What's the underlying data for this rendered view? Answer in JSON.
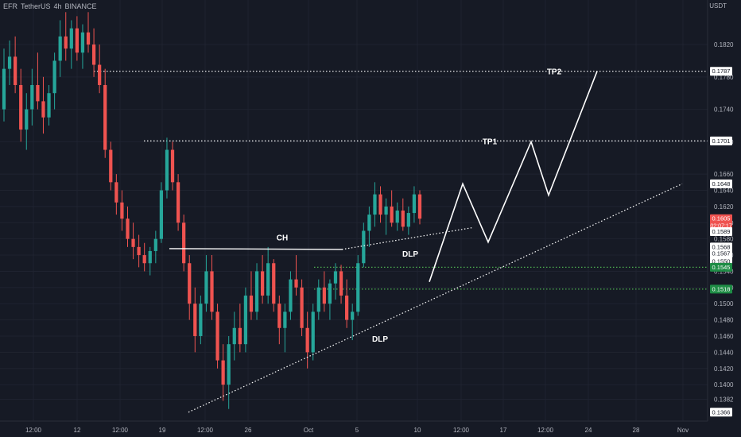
{
  "header": {
    "symbol": "EFR",
    "pair_text": "TetherUS",
    "interval": "4h",
    "exchange": "BINANCE",
    "currency": "USDT"
  },
  "colors": {
    "background": "#161a25",
    "grid": "#1f2330",
    "up": "#26a69a",
    "down": "#ef5350",
    "text": "#b2b5be",
    "annotation": "#ffffff",
    "support_line": "#4caf50",
    "green_tag": "#1e8c45",
    "current_tag": "#ef5350"
  },
  "chart_data": {
    "type": "candlestick",
    "y_axis": {
      "unit": "USDT",
      "range": [
        0.1355,
        0.1875
      ],
      "ticks": [
        0.182,
        0.178,
        0.174,
        0.17,
        0.166,
        0.164,
        0.162,
        0.16,
        0.158,
        0.156,
        0.154,
        0.152,
        0.15,
        0.148,
        0.146,
        0.144,
        0.142,
        0.14,
        0.1382
      ]
    },
    "x_axis": {
      "ticks": [
        "12:00",
        "12",
        "12:00",
        "19",
        "12:00",
        "26",
        "Oct",
        "5",
        "10",
        "12:00",
        "17",
        "12:00",
        "24",
        "28",
        "Nov"
      ]
    },
    "price_tags": [
      {
        "label": "0.1787",
        "style": "outline"
      },
      {
        "label": "0.1701",
        "style": "outline"
      },
      {
        "label": "0.1648",
        "style": "outline"
      },
      {
        "label": "0.1605",
        "sublabel": "02:07:17",
        "style": "current"
      },
      {
        "label": "0.1589",
        "style": "outline"
      },
      {
        "label": "0.1568",
        "style": "outline"
      },
      {
        "label": "0.1567",
        "style": "outline"
      },
      {
        "label": "0.1550",
        "style": "outline"
      },
      {
        "label": "0.1545",
        "style": "green"
      },
      {
        "label": "0.1518",
        "style": "green"
      },
      {
        "label": "0.1366",
        "style": "outline"
      }
    ],
    "levels": [
      {
        "name": "TP2",
        "price": 0.1787,
        "style": "dotted-white"
      },
      {
        "name": "TP1",
        "price": 0.1701,
        "style": "dotted-white"
      },
      {
        "price": 0.1545,
        "style": "dotted-green"
      },
      {
        "price": 0.1518,
        "style": "dotted-green"
      }
    ],
    "annotations": [
      "TP2",
      "TP1",
      "CH",
      "DLP",
      "DLP"
    ],
    "candles_approx": [
      [
        0.174,
        0.1815,
        0.1725,
        0.179
      ],
      [
        0.179,
        0.1825,
        0.177,
        0.1805
      ],
      [
        0.1805,
        0.183,
        0.176,
        0.177
      ],
      [
        0.177,
        0.179,
        0.17,
        0.1715
      ],
      [
        0.1715,
        0.176,
        0.169,
        0.174
      ],
      [
        0.174,
        0.179,
        0.172,
        0.177
      ],
      [
        0.177,
        0.181,
        0.174,
        0.175
      ],
      [
        0.175,
        0.178,
        0.171,
        0.173
      ],
      [
        0.173,
        0.177,
        0.172,
        0.176
      ],
      [
        0.176,
        0.181,
        0.174,
        0.18
      ],
      [
        0.18,
        0.185,
        0.178,
        0.183
      ],
      [
        0.183,
        0.186,
        0.18,
        0.1815
      ],
      [
        0.1815,
        0.185,
        0.179,
        0.184
      ],
      [
        0.184,
        0.1855,
        0.18,
        0.181
      ],
      [
        0.181,
        0.1845,
        0.179,
        0.1835
      ],
      [
        0.1835,
        0.186,
        0.181,
        0.182
      ],
      [
        0.182,
        0.184,
        0.178,
        0.1795
      ],
      [
        0.1795,
        0.182,
        0.176,
        0.177
      ],
      [
        0.177,
        0.179,
        0.168,
        0.169
      ],
      [
        0.169,
        0.17,
        0.164,
        0.165
      ],
      [
        0.165,
        0.166,
        0.161,
        0.1625
      ],
      [
        0.1625,
        0.164,
        0.159,
        0.1605
      ],
      [
        0.1605,
        0.162,
        0.157,
        0.158
      ],
      [
        0.158,
        0.16,
        0.1555,
        0.157
      ],
      [
        0.157,
        0.1585,
        0.1545,
        0.156
      ],
      [
        0.156,
        0.1575,
        0.154,
        0.155
      ],
      [
        0.155,
        0.157,
        0.1535,
        0.1565
      ],
      [
        0.1565,
        0.159,
        0.155,
        0.158
      ],
      [
        0.158,
        0.165,
        0.1575,
        0.164
      ],
      [
        0.164,
        0.1705,
        0.163,
        0.169
      ],
      [
        0.169,
        0.17,
        0.164,
        0.165
      ],
      [
        0.165,
        0.166,
        0.159,
        0.16
      ],
      [
        0.16,
        0.161,
        0.154,
        0.155
      ],
      [
        0.155,
        0.156,
        0.148,
        0.15
      ],
      [
        0.15,
        0.152,
        0.144,
        0.146
      ],
      [
        0.146,
        0.151,
        0.145,
        0.15
      ],
      [
        0.15,
        0.156,
        0.149,
        0.154
      ],
      [
        0.154,
        0.156,
        0.148,
        0.149
      ],
      [
        0.149,
        0.15,
        0.142,
        0.143
      ],
      [
        0.143,
        0.145,
        0.138,
        0.14
      ],
      [
        0.14,
        0.146,
        0.137,
        0.145
      ],
      [
        0.145,
        0.149,
        0.143,
        0.147
      ],
      [
        0.147,
        0.15,
        0.144,
        0.145
      ],
      [
        0.145,
        0.152,
        0.144,
        0.151
      ],
      [
        0.151,
        0.154,
        0.148,
        0.149
      ],
      [
        0.149,
        0.155,
        0.148,
        0.154
      ],
      [
        0.154,
        0.156,
        0.15,
        0.151
      ],
      [
        0.151,
        0.157,
        0.15,
        0.155
      ],
      [
        0.155,
        0.1555,
        0.149,
        0.15
      ],
      [
        0.15,
        0.151,
        0.145,
        0.147
      ],
      [
        0.147,
        0.15,
        0.144,
        0.149
      ],
      [
        0.149,
        0.154,
        0.148,
        0.153
      ],
      [
        0.153,
        0.156,
        0.151,
        0.152
      ],
      [
        0.152,
        0.153,
        0.146,
        0.147
      ],
      [
        0.147,
        0.149,
        0.142,
        0.144
      ],
      [
        0.144,
        0.15,
        0.143,
        0.149
      ],
      [
        0.149,
        0.153,
        0.148,
        0.152
      ],
      [
        0.152,
        0.154,
        0.149,
        0.15
      ],
      [
        0.15,
        0.153,
        0.148,
        0.1525
      ],
      [
        0.1525,
        0.155,
        0.1505,
        0.154
      ],
      [
        0.154,
        0.1548,
        0.15,
        0.151
      ],
      [
        0.151,
        0.153,
        0.147,
        0.148
      ],
      [
        0.148,
        0.15,
        0.1455,
        0.149
      ],
      [
        0.149,
        0.156,
        0.1485,
        0.155
      ],
      [
        0.155,
        0.16,
        0.1545,
        0.159
      ],
      [
        0.159,
        0.162,
        0.157,
        0.161
      ],
      [
        0.161,
        0.165,
        0.1595,
        0.1635
      ],
      [
        0.1635,
        0.1645,
        0.16,
        0.161
      ],
      [
        0.161,
        0.163,
        0.1585,
        0.162
      ],
      [
        0.162,
        0.164,
        0.1595,
        0.16
      ],
      [
        0.16,
        0.1625,
        0.159,
        0.1615
      ],
      [
        0.1615,
        0.163,
        0.159,
        0.1595
      ],
      [
        0.1595,
        0.162,
        0.1585,
        0.1612
      ],
      [
        0.1612,
        0.1645,
        0.16,
        0.1635
      ],
      [
        0.1635,
        0.164,
        0.1598,
        0.1605
      ]
    ]
  }
}
